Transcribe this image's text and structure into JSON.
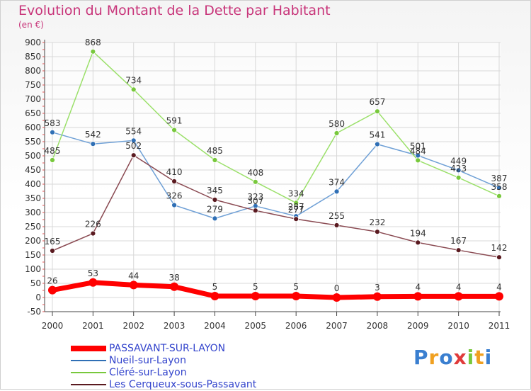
{
  "chart_data": {
    "type": "line",
    "title": "Evolution du Montant de la Dette par Habitant",
    "subtitle": "(en €)",
    "categories": [
      "2000",
      "2001",
      "2002",
      "2003",
      "2004",
      "2005",
      "2006",
      "2007",
      "2008",
      "2009",
      "2010",
      "2011"
    ],
    "ylim": [
      -50,
      900
    ],
    "yticks": [
      -50,
      0,
      50,
      100,
      150,
      200,
      250,
      300,
      350,
      400,
      450,
      500,
      550,
      600,
      650,
      700,
      750,
      800,
      850,
      900
    ],
    "grid": true,
    "legend_position": "bottom-left",
    "series": [
      {
        "name": "PASSAVANT-SUR-LAYON",
        "color": "#ff0000",
        "marker": "#ff0000",
        "width": 7,
        "radius": 6,
        "values": [
          26,
          53,
          44,
          38,
          5,
          5,
          5,
          0,
          3,
          4,
          4,
          4
        ]
      },
      {
        "name": "Nueil-sur-Layon",
        "color": "#6fa0d6",
        "marker": "#2f6fb5",
        "width": 1.5,
        "radius": 3.5,
        "values": [
          583,
          542,
          554,
          326,
          279,
          323,
          287,
          374,
          541,
          501,
          449,
          387
        ]
      },
      {
        "name": "Cléré-sur-Layon",
        "color": "#9be06a",
        "marker": "#78c83c",
        "width": 1.5,
        "radius": 3.5,
        "values": [
          485,
          868,
          734,
          591,
          485,
          408,
          334,
          580,
          657,
          484,
          423,
          358
        ]
      },
      {
        "name": "Les Cerqueux-sous-Passavant",
        "color": "#8a4a52",
        "marker": "#5a1a20",
        "width": 1.5,
        "radius": 3.5,
        "values": [
          165,
          226,
          502,
          410,
          345,
          307,
          277,
          255,
          232,
          194,
          167,
          142
        ]
      }
    ]
  },
  "logo": {
    "text": "Proxiti",
    "colors": [
      "#3a7fd0",
      "#f0a020",
      "#3a7fd0",
      "#e03a3a",
      "#78c83c",
      "#f0a020",
      "#3a7fd0"
    ]
  }
}
